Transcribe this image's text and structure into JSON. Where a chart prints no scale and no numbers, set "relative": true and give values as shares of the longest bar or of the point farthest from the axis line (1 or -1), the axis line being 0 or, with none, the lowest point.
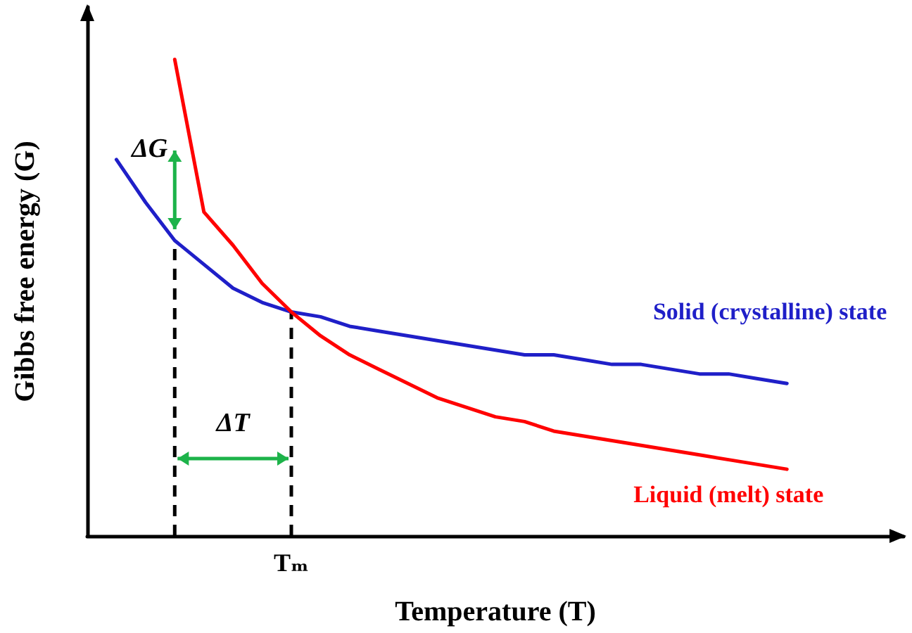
{
  "chart_data": {
    "type": "line",
    "relative": true,
    "xlabel": "Temperature (T)",
    "ylabel": "Gibbs free energy (G)",
    "legend": false,
    "marker": "none",
    "line_style": "solid",
    "categories": [
      null,
      null,
      null,
      null,
      null,
      null,
      null,
      null,
      null,
      null,
      null,
      null,
      null,
      null,
      null,
      null,
      null,
      null,
      null,
      null,
      null,
      null,
      null,
      null,
      null,
      null,
      null,
      null,
      null
    ],
    "series": [
      {
        "name": "Solid (crystalline) state",
        "color": "#1f1fc8",
        "values": [
          null,
          0.79,
          0.7,
          0.62,
          0.57,
          0.52,
          0.49,
          0.47,
          0.46,
          0.44,
          0.43,
          0.42,
          0.41,
          0.4,
          0.39,
          0.38,
          0.38,
          0.37,
          0.36,
          0.36,
          0.35,
          0.34,
          0.34,
          0.33,
          0.32,
          null,
          null,
          null,
          null
        ]
      },
      {
        "name": "Liquid (melt) state",
        "color": "#ff0000",
        "values": [
          null,
          null,
          null,
          1,
          0.68,
          0.61,
          0.53,
          0.47,
          0.42,
          0.38,
          0.35,
          0.32,
          0.29,
          0.27,
          0.25,
          0.24,
          0.22,
          0.21,
          0.2,
          0.19,
          0.18,
          0.17,
          0.16,
          0.15,
          0.14,
          null,
          null,
          null,
          null
        ]
      }
    ],
    "annotations": [
      "ΔG",
      "ΔT",
      "Tₘ"
    ]
  }
}
